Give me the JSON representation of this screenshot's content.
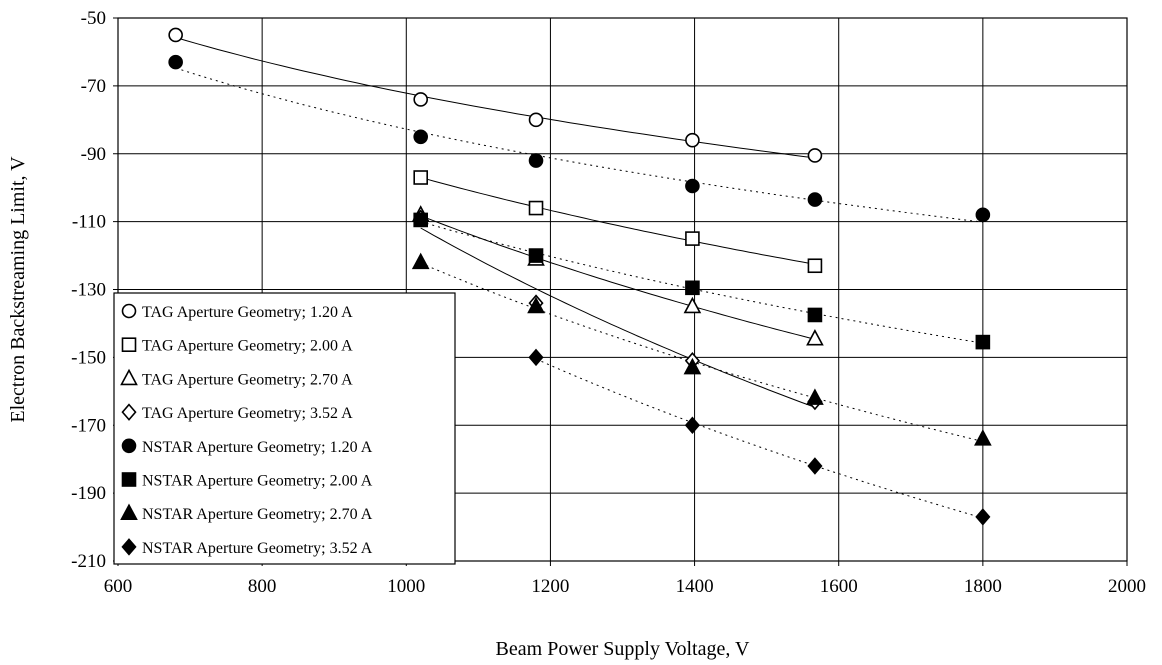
{
  "chart_data": {
    "type": "scatter",
    "title": "",
    "xlabel": "Beam Power Supply Voltage, V",
    "ylabel": "Electron Backstreaming Limit, V",
    "xlim": [
      600,
      2000
    ],
    "ylim": [
      -210,
      -50
    ],
    "x_ticks": [
      "600",
      "800",
      "1000",
      "1200",
      "1400",
      "1600",
      "1800",
      "2000"
    ],
    "y_ticks": [
      "-50",
      "-70",
      "-90",
      "-110",
      "-130",
      "-150",
      "-170",
      "-190",
      "-210"
    ],
    "grid": true,
    "legend_position": "lower-left",
    "series": [
      {
        "name": "TAG Aperture Geometry; 1.20 A",
        "marker": "circle",
        "filled": false,
        "trendline": "solid",
        "x": [
          680,
          1020,
          1180,
          1397,
          1567
        ],
        "y": [
          -55,
          -74,
          -80,
          -86,
          -90.5
        ]
      },
      {
        "name": "TAG Aperture Geometry; 2.00 A",
        "marker": "square",
        "filled": false,
        "trendline": "solid",
        "x": [
          1020,
          1180,
          1397,
          1567
        ],
        "y": [
          -97,
          -106,
          -115,
          -123
        ]
      },
      {
        "name": "TAG Aperture Geometry; 2.70 A",
        "marker": "triangle",
        "filled": false,
        "trendline": "solid",
        "x": [
          1020,
          1180,
          1397,
          1567
        ],
        "y": [
          -108,
          -121,
          -135,
          -144.5
        ]
      },
      {
        "name": "TAG Aperture Geometry; 3.52 A",
        "marker": "diamond",
        "filled": false,
        "trendline": "solid",
        "x": [
          1020,
          1180,
          1397,
          1567
        ],
        "y": [
          -109,
          -134,
          -151,
          -163
        ]
      },
      {
        "name": "NSTAR Aperture Geometry; 1.20 A",
        "marker": "circle",
        "filled": true,
        "trendline": "dotted",
        "x": [
          680,
          1020,
          1180,
          1397,
          1567,
          1800
        ],
        "y": [
          -63,
          -85,
          -92,
          -99.5,
          -103.5,
          -108
        ]
      },
      {
        "name": "NSTAR Aperture Geometry; 2.00 A",
        "marker": "square",
        "filled": true,
        "trendline": "dotted",
        "x": [
          1020,
          1180,
          1397,
          1567,
          1800
        ],
        "y": [
          -109.5,
          -120,
          -129.5,
          -137.5,
          -145.5
        ]
      },
      {
        "name": "NSTAR Aperture Geometry; 2.70 A",
        "marker": "triangle",
        "filled": true,
        "trendline": "dotted",
        "x": [
          1020,
          1180,
          1397,
          1567,
          1800
        ],
        "y": [
          -122,
          -135,
          -153,
          -162,
          -174
        ]
      },
      {
        "name": "NSTAR Aperture Geometry; 3.52 A",
        "marker": "diamond",
        "filled": true,
        "trendline": "dotted",
        "x": [
          1180,
          1397,
          1567,
          1800
        ],
        "y": [
          -150,
          -170,
          -182,
          -197
        ]
      }
    ]
  }
}
